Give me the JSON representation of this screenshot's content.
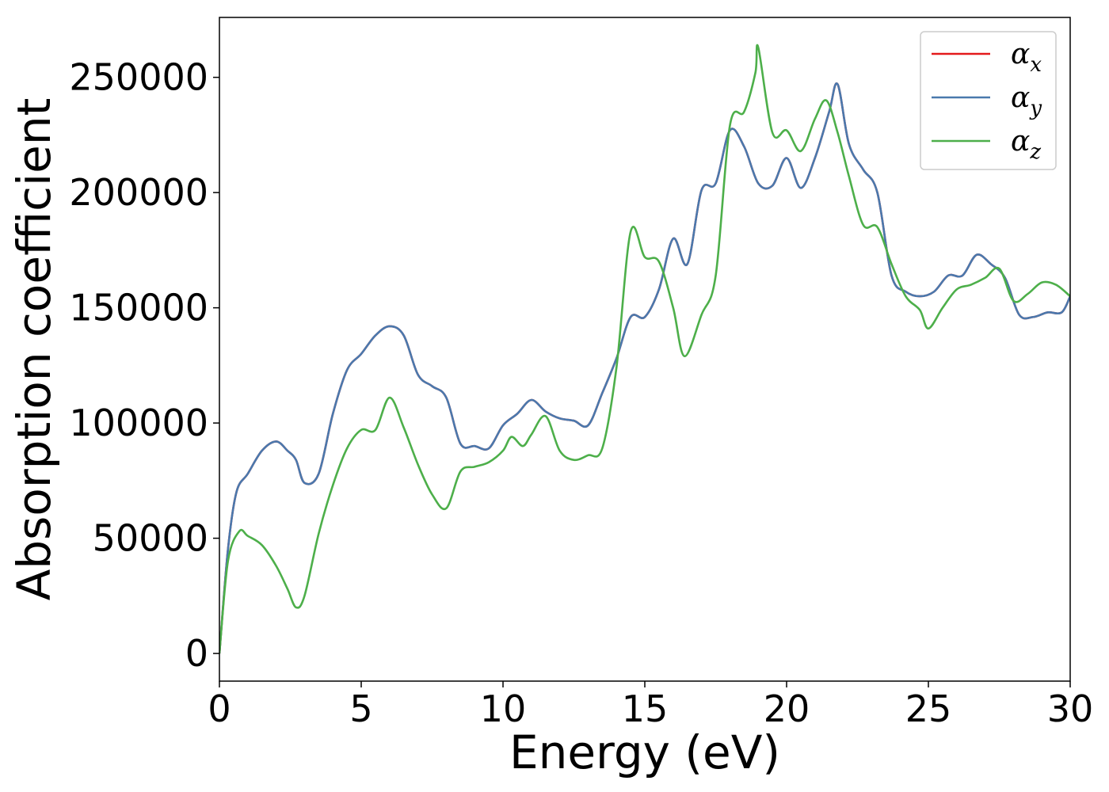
{
  "chart_data": {
    "type": "line",
    "xlabel": "Energy (eV)",
    "ylabel": "Absorption coefficient",
    "xlim": [
      0,
      30
    ],
    "ylim": [
      -12000,
      276000
    ],
    "xticks": [
      0,
      5,
      10,
      15,
      20,
      25,
      30
    ],
    "xtick_labels": [
      "0",
      "5",
      "10",
      "15",
      "20",
      "25",
      "30"
    ],
    "yticks": [
      0,
      50000,
      100000,
      150000,
      200000,
      250000
    ],
    "ytick_labels": [
      "0",
      "50000",
      "100000",
      "150000",
      "200000",
      "250000"
    ],
    "grid": false,
    "legend_position": "top-right",
    "series": [
      {
        "name": "α",
        "subscript": "x",
        "color": "#e41a1c",
        "x": [
          0,
          0.3,
          0.6,
          1.0,
          1.5,
          2.0,
          2.4,
          2.7,
          3.0,
          3.5,
          4.0,
          4.5,
          5.0,
          5.5,
          6.0,
          6.5,
          7.0,
          7.5,
          8.0,
          8.5,
          9.0,
          9.5,
          10.0,
          10.5,
          11.0,
          11.5,
          12.0,
          12.5,
          13.0,
          13.5,
          14.0,
          14.5,
          15.0,
          15.5,
          16.0,
          16.5,
          17.0,
          17.5,
          18.0,
          18.5,
          19.0,
          19.5,
          20.0,
          20.5,
          21.0,
          21.5,
          21.8,
          22.2,
          22.7,
          23.2,
          23.7,
          24.2,
          24.7,
          25.2,
          25.7,
          26.2,
          26.7,
          27.2,
          27.7,
          28.2,
          28.7,
          29.2,
          29.7,
          30.0
        ],
        "y": [
          0,
          45000,
          70000,
          78000,
          88000,
          92000,
          88000,
          84000,
          74000,
          78000,
          104000,
          123000,
          130000,
          138000,
          142000,
          138000,
          121000,
          116000,
          111000,
          91000,
          90000,
          89000,
          99000,
          104000,
          110000,
          105000,
          102000,
          101000,
          99000,
          113000,
          128000,
          146000,
          146000,
          158000,
          180000,
          169000,
          201000,
          204000,
          227000,
          220000,
          204000,
          203000,
          215000,
          202000,
          215000,
          235000,
          247000,
          221000,
          210000,
          200000,
          164000,
          157000,
          155000,
          157000,
          164000,
          164000,
          173000,
          169000,
          163000,
          147000,
          146000,
          148000,
          148000,
          155000
        ]
      },
      {
        "name": "α",
        "subscript": "y",
        "color": "#4a79ad",
        "x": [
          0,
          0.3,
          0.6,
          1.0,
          1.5,
          2.0,
          2.4,
          2.7,
          3.0,
          3.5,
          4.0,
          4.5,
          5.0,
          5.5,
          6.0,
          6.5,
          7.0,
          7.5,
          8.0,
          8.5,
          9.0,
          9.5,
          10.0,
          10.5,
          11.0,
          11.5,
          12.0,
          12.5,
          13.0,
          13.5,
          14.0,
          14.5,
          15.0,
          15.5,
          16.0,
          16.5,
          17.0,
          17.5,
          18.0,
          18.5,
          19.0,
          19.5,
          20.0,
          20.5,
          21.0,
          21.5,
          21.8,
          22.2,
          22.7,
          23.2,
          23.7,
          24.2,
          24.7,
          25.2,
          25.7,
          26.2,
          26.7,
          27.2,
          27.7,
          28.2,
          28.7,
          29.2,
          29.7,
          30.0
        ],
        "y": [
          0,
          45000,
          70000,
          78000,
          88000,
          92000,
          88000,
          84000,
          74000,
          78000,
          104000,
          123000,
          130000,
          138000,
          142000,
          138000,
          121000,
          116000,
          111000,
          91000,
          90000,
          89000,
          99000,
          104000,
          110000,
          105000,
          102000,
          101000,
          99000,
          113000,
          128000,
          146000,
          146000,
          158000,
          180000,
          169000,
          201000,
          204000,
          227000,
          220000,
          204000,
          203000,
          215000,
          202000,
          215000,
          235000,
          247000,
          221000,
          210000,
          200000,
          164000,
          157000,
          155000,
          157000,
          164000,
          164000,
          173000,
          169000,
          163000,
          147000,
          146000,
          148000,
          148000,
          155000
        ]
      },
      {
        "name": "α",
        "subscript": "z",
        "color": "#4daf4a",
        "x": [
          0,
          0.3,
          0.7,
          1.0,
          1.5,
          2.0,
          2.4,
          2.7,
          3.0,
          3.5,
          4.0,
          4.5,
          5.0,
          5.5,
          6.0,
          6.5,
          7.0,
          7.5,
          8.0,
          8.5,
          9.0,
          9.5,
          10.0,
          10.3,
          10.7,
          11.0,
          11.5,
          12.0,
          12.5,
          13.0,
          13.5,
          14.0,
          14.5,
          15.0,
          15.5,
          16.0,
          16.4,
          17.0,
          17.5,
          18.0,
          18.5,
          18.9,
          19.0,
          19.5,
          20.0,
          20.5,
          21.0,
          21.4,
          21.8,
          22.2,
          22.7,
          23.2,
          23.7,
          24.2,
          24.7,
          25.0,
          25.5,
          26.0,
          26.5,
          27.0,
          27.5,
          28.0,
          28.5,
          29.0,
          29.5,
          30.0
        ],
        "y": [
          0,
          40000,
          53000,
          51000,
          47000,
          38000,
          28000,
          20000,
          25000,
          52000,
          73000,
          89000,
          97000,
          97000,
          111000,
          98000,
          82000,
          69000,
          63000,
          79000,
          81000,
          83000,
          88000,
          94000,
          90000,
          95000,
          103000,
          88000,
          84000,
          86000,
          89000,
          124000,
          183000,
          172000,
          170000,
          150000,
          129000,
          147000,
          164000,
          229000,
          235000,
          252000,
          263000,
          226000,
          227000,
          218000,
          232000,
          240000,
          226000,
          207000,
          186000,
          185000,
          169000,
          155000,
          149000,
          141000,
          150000,
          158000,
          160000,
          163000,
          167000,
          153000,
          156000,
          161000,
          160000,
          155000
        ]
      }
    ]
  }
}
